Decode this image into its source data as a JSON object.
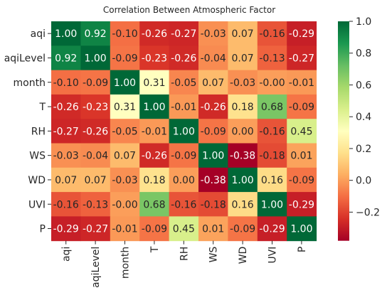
{
  "chart_data": {
    "type": "heatmap",
    "title": "Correlation Between Atmospheric Factor",
    "x_labels": [
      "aqi",
      "aqiLevel",
      "month",
      "T",
      "RH",
      "WS",
      "WD",
      "UVI",
      "P"
    ],
    "y_labels": [
      "aqi",
      "aqiLevel",
      "month",
      "T",
      "RH",
      "WS",
      "WD",
      "UVI",
      "P"
    ],
    "values": [
      [
        1.0,
        0.92,
        -0.1,
        -0.26,
        -0.27,
        -0.03,
        0.07,
        -0.16,
        -0.29
      ],
      [
        0.92,
        1.0,
        -0.09,
        -0.23,
        -0.26,
        -0.04,
        0.07,
        -0.13,
        -0.27
      ],
      [
        -0.1,
        -0.09,
        1.0,
        0.31,
        -0.05,
        0.07,
        -0.03,
        -0.0,
        -0.01
      ],
      [
        -0.26,
        -0.23,
        0.31,
        1.0,
        -0.01,
        -0.26,
        0.18,
        0.68,
        -0.09
      ],
      [
        -0.27,
        -0.26,
        -0.05,
        -0.01,
        1.0,
        -0.09,
        0.0,
        -0.16,
        0.45
      ],
      [
        -0.03,
        -0.04,
        0.07,
        -0.26,
        -0.09,
        1.0,
        -0.38,
        -0.18,
        0.01
      ],
      [
        0.07,
        0.07,
        -0.03,
        0.18,
        0.0,
        -0.38,
        1.0,
        0.16,
        -0.09
      ],
      [
        -0.16,
        -0.13,
        -0.0,
        0.68,
        -0.16,
        -0.18,
        0.16,
        1.0,
        -0.29
      ],
      [
        -0.29,
        -0.27,
        -0.01,
        -0.09,
        0.45,
        0.01,
        -0.09,
        -0.29,
        1.0
      ]
    ],
    "labels": [
      [
        "1.00",
        "0.92",
        "-0.10",
        "-0.26",
        "-0.27",
        "-0.03",
        "0.07",
        "-0.16",
        "-0.29"
      ],
      [
        "0.92",
        "1.00",
        "-0.09",
        "-0.23",
        "-0.26",
        "-0.04",
        "0.07",
        "-0.13",
        "-0.27"
      ],
      [
        "-0.10",
        "-0.09",
        "1.00",
        "0.31",
        "-0.05",
        "0.07",
        "-0.03",
        "-0.00",
        "-0.01"
      ],
      [
        "-0.26",
        "-0.23",
        "0.31",
        "1.00",
        "-0.01",
        "-0.26",
        "0.18",
        "0.68",
        "-0.09"
      ],
      [
        "-0.27",
        "-0.26",
        "-0.05",
        "-0.01",
        "1.00",
        "-0.09",
        "0.00",
        "-0.16",
        "0.45"
      ],
      [
        "-0.03",
        "-0.04",
        "0.07",
        "-0.26",
        "-0.09",
        "1.00",
        "-0.38",
        "-0.18",
        "0.01"
      ],
      [
        "0.07",
        "0.07",
        "-0.03",
        "0.18",
        "0.00",
        "-0.38",
        "1.00",
        "0.16",
        "-0.09"
      ],
      [
        "-0.16",
        "-0.13",
        "-0.00",
        "0.68",
        "-0.16",
        "-0.18",
        "0.16",
        "1.00",
        "-0.29"
      ],
      [
        "-0.29",
        "-0.27",
        "-0.01",
        "-0.09",
        "0.45",
        "0.01",
        "-0.09",
        "-0.29",
        "1.00"
      ]
    ],
    "colormap": "RdYlGn",
    "vmin": -0.38,
    "vmax": 1.0,
    "colorbar_ticks": [
      1.0,
      0.8,
      0.6,
      0.4,
      0.2,
      0.0,
      -0.2
    ],
    "colorbar_tick_labels": [
      "1.0",
      "0.8",
      "0.6",
      "0.4",
      "0.2",
      "0.0",
      "−0.2"
    ],
    "colormap_stops": [
      "#a50026",
      "#d73027",
      "#f46d43",
      "#fdae61",
      "#fee08b",
      "#ffffbf",
      "#d9ef8b",
      "#a6d96a",
      "#66bd63",
      "#1a9850",
      "#006837"
    ],
    "dark_text_color": "#262626",
    "light_text_color": "#ffffff"
  }
}
